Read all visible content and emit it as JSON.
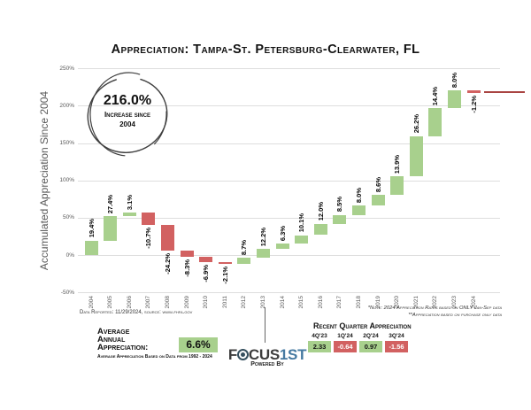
{
  "title": "Appreciation: Tampa-St. Petersburg-Clearwater, FL",
  "badge": {
    "value": "216.0%",
    "line1": "Increase since",
    "line2": "2004"
  },
  "chart_data": {
    "type": "bar",
    "subtype": "waterfall",
    "title": "Appreciation: Tampa-St. Petersburg-Clearwater, FL",
    "xlabel": "",
    "ylabel": "Accumulated Appreciation Since 2004",
    "ylim": [
      -50,
      250
    ],
    "grid": true,
    "total_appreciation": "216.0%",
    "categories": [
      "2004",
      "2005",
      "2006",
      "2007",
      "2008",
      "2009",
      "2010",
      "2011",
      "2012",
      "2013",
      "2014",
      "2015",
      "2016",
      "2017",
      "2018",
      "2019",
      "2020",
      "2021",
      "2022",
      "2023",
      "2024"
    ],
    "values": [
      19.4,
      27.4,
      3.1,
      -10.7,
      -24.2,
      -8.3,
      -6.9,
      -2.1,
      8.7,
      12.2,
      6.3,
      10.1,
      12.0,
      8.5,
      8.0,
      8.6,
      13.9,
      26.2,
      14.4,
      8.0,
      -1.2
    ],
    "labels": [
      "19.4%",
      "27.4%",
      "3.1%",
      "-10.7%",
      "-24.2%",
      "-8.3%",
      "-6.9%",
      "-2.1%",
      "8.7%",
      "12.2%",
      "6.3%",
      "10.1%",
      "12.0%",
      "8.5%",
      "8.0%",
      "8.6%",
      "13.9%",
      "26.2%",
      "14.4%",
      "8.0%",
      "-1.2%"
    ],
    "yticks": [
      {
        "label": "250%",
        "value": 250
      },
      {
        "label": "200%",
        "value": 200
      },
      {
        "label": "150%",
        "value": 150
      },
      {
        "label": "100%",
        "value": 100
      },
      {
        "label": "50%",
        "value": 50
      },
      {
        "label": "0%",
        "value": 0
      },
      {
        "label": "-50%",
        "value": -50
      }
    ],
    "colors": {
      "positive": "#a8d08d",
      "negative": "#d26161"
    }
  },
  "footnotes": {
    "data_reported": "Data Reported: 11/29/2024, source: www.fhfa.gov",
    "note1": "*Note: 2024 Appreciation Rates based on ONLY Jan-Sep data",
    "note2": "**Appreciation based on purchase only data"
  },
  "average_block": {
    "label_lines": [
      "Average",
      "Annual",
      "Appreciation:"
    ],
    "sub_label": "Average Appreciation Based on Data from 1992 - 2024",
    "value": "6.6%"
  },
  "logo": {
    "part1": "F",
    "icon": "focus-lens-icon",
    "part2": "CUS",
    "part3": "1ST",
    "tagline": "Powered By",
    "accent_color": "#4579a1"
  },
  "quarter_table": {
    "title": "Recent Quarter Appreciation",
    "columns": [
      "4Q'23",
      "1Q'24",
      "2Q'24",
      "3Q'24"
    ],
    "values": [
      "2.33",
      "-0.64",
      "0.97",
      "-1.56"
    ],
    "positive": [
      true,
      false,
      true,
      false
    ]
  }
}
